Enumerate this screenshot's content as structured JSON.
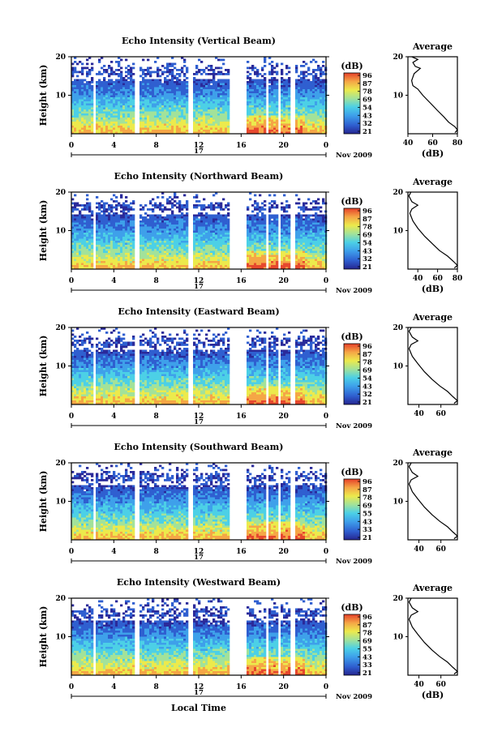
{
  "chart_data": [
    {
      "type": "heatmap",
      "title": "Echo Intensity (Vertical Beam)",
      "ylabel": "Height (km)",
      "yticks": [
        "20",
        "10"
      ],
      "ylim": [
        0,
        20
      ],
      "xticks": [
        "0",
        "4",
        "8",
        "12",
        "16",
        "20",
        "0"
      ],
      "xlim": [
        0,
        24
      ],
      "date_day": "17",
      "date_label": "Nov 2009",
      "data_gaps_hours": [
        [
          1.9,
          2.2
        ],
        [
          5.9,
          6.2
        ],
        [
          11.0,
          11.3
        ],
        [
          14.9,
          16.4
        ],
        [
          18.2,
          18.35
        ],
        [
          19.3,
          19.55
        ],
        [
          20.6,
          20.9
        ]
      ],
      "colorbar": {
        "unit": "(dB)",
        "ticks": [
          "96",
          "87",
          "78",
          "69",
          "54",
          "43",
          "32",
          "21"
        ]
      },
      "profile": {
        "title": "Average",
        "xlabel": "(dB)",
        "xticks": [
          "40",
          "60",
          "80"
        ],
        "xlim": [
          40,
          80
        ],
        "yticks": [
          "20",
          "10"
        ],
        "points": [
          [
            43,
            20
          ],
          [
            48,
            19.3
          ],
          [
            44,
            18.5
          ],
          [
            46,
            17.5
          ],
          [
            50,
            17.0
          ],
          [
            45,
            15.6
          ],
          [
            43,
            13.8
          ],
          [
            44,
            12.5
          ],
          [
            48,
            11.6
          ],
          [
            52,
            10.0
          ],
          [
            58,
            8.0
          ],
          [
            64,
            6.0
          ],
          [
            69,
            4.4
          ],
          [
            73,
            3.0
          ],
          [
            78,
            1.8
          ],
          [
            80,
            1.0
          ],
          [
            78,
            0.3
          ]
        ]
      }
    },
    {
      "type": "heatmap",
      "title": "Echo Intensity (Northward Beam)",
      "ylabel": "Height (km)",
      "yticks": [
        "20",
        "10"
      ],
      "ylim": [
        0,
        20
      ],
      "xticks": [
        "0",
        "4",
        "8",
        "12",
        "16",
        "20",
        "0"
      ],
      "xlim": [
        0,
        24
      ],
      "date_day": "17",
      "date_label": "Nov 2009",
      "data_gaps_hours": [
        [
          1.9,
          2.2
        ],
        [
          5.9,
          6.2
        ],
        [
          11.0,
          11.3
        ],
        [
          14.9,
          16.4
        ],
        [
          18.2,
          18.35
        ],
        [
          19.3,
          19.55
        ],
        [
          20.6,
          20.9
        ]
      ],
      "colorbar": {
        "unit": "(dB)",
        "ticks": [
          "96",
          "87",
          "78",
          "69",
          "54",
          "43",
          "32",
          "21"
        ]
      },
      "profile": {
        "title": "Average",
        "xlabel": "(dB)",
        "xticks": [
          "40",
          "60",
          "80"
        ],
        "xlim": [
          30,
          80
        ],
        "yticks": [
          "20",
          "10"
        ],
        "points": [
          [
            33,
            20
          ],
          [
            31,
            19.0
          ],
          [
            34,
            17.5
          ],
          [
            40,
            16.6
          ],
          [
            34,
            15.6
          ],
          [
            32,
            14.5
          ],
          [
            35,
            12.5
          ],
          [
            40,
            10.6
          ],
          [
            47,
            8.5
          ],
          [
            55,
            6.5
          ],
          [
            62,
            4.8
          ],
          [
            70,
            3.4
          ],
          [
            76,
            2.0
          ],
          [
            80,
            1.0
          ],
          [
            77,
            0.3
          ]
        ]
      }
    },
    {
      "type": "heatmap",
      "title": "Echo Intensity (Eastward Beam)",
      "ylabel": "Height (km)",
      "yticks": [
        "20",
        "10"
      ],
      "ylim": [
        0,
        20
      ],
      "xticks": [
        "0",
        "4",
        "8",
        "12",
        "16",
        "20",
        "0"
      ],
      "xlim": [
        0,
        24
      ],
      "date_day": "17",
      "date_label": "Nov 2009",
      "data_gaps_hours": [
        [
          1.9,
          2.2
        ],
        [
          5.9,
          6.2
        ],
        [
          11.0,
          11.3
        ],
        [
          14.9,
          16.4
        ],
        [
          18.2,
          18.35
        ],
        [
          19.3,
          19.55
        ],
        [
          20.6,
          20.9
        ]
      ],
      "colorbar": {
        "unit": "(dB)",
        "ticks": [
          "96",
          "87",
          "78",
          "69",
          "54",
          "43",
          "32",
          "21"
        ]
      },
      "profile": {
        "title": "Average",
        "xlabel": "",
        "xticks": [
          "40",
          "60"
        ],
        "xlim": [
          30,
          75
        ],
        "yticks": [
          "20",
          "10"
        ],
        "points": [
          [
            33,
            20
          ],
          [
            31,
            19.0
          ],
          [
            34,
            17.5
          ],
          [
            39,
            16.5
          ],
          [
            33,
            15.6
          ],
          [
            31,
            14.5
          ],
          [
            34,
            12.5
          ],
          [
            39,
            10.6
          ],
          [
            45,
            8.5
          ],
          [
            52,
            6.5
          ],
          [
            59,
            4.8
          ],
          [
            66,
            3.4
          ],
          [
            71,
            2.0
          ],
          [
            75,
            1.0
          ],
          [
            72,
            0.3
          ]
        ]
      }
    },
    {
      "type": "heatmap",
      "title": "Echo Intensity (Southward Beam)",
      "ylabel": "Height (km)",
      "yticks": [
        "20",
        "10"
      ],
      "ylim": [
        0,
        20
      ],
      "xticks": [
        "0",
        "4",
        "8",
        "12",
        "16",
        "20",
        "0"
      ],
      "xlim": [
        0,
        24
      ],
      "date_day": "17",
      "date_label": "Nov 2009",
      "data_gaps_hours": [
        [
          1.9,
          2.2
        ],
        [
          5.9,
          6.2
        ],
        [
          11.0,
          11.3
        ],
        [
          14.9,
          16.4
        ],
        [
          18.2,
          18.35
        ],
        [
          19.3,
          19.55
        ],
        [
          20.6,
          20.9
        ]
      ],
      "colorbar": {
        "unit": "(dB)",
        "ticks": [
          "96",
          "87",
          "78",
          "69",
          "55",
          "43",
          "33",
          "21"
        ]
      },
      "profile": {
        "title": "Average",
        "xlabel": "",
        "xticks": [
          "40",
          "60"
        ],
        "xlim": [
          30,
          75
        ],
        "yticks": [
          "20",
          "10"
        ],
        "points": [
          [
            33,
            20
          ],
          [
            31,
            19.0
          ],
          [
            34,
            17.5
          ],
          [
            39,
            16.5
          ],
          [
            33,
            15.6
          ],
          [
            31,
            14.5
          ],
          [
            34,
            12.5
          ],
          [
            39,
            10.6
          ],
          [
            45,
            8.5
          ],
          [
            52,
            6.5
          ],
          [
            59,
            4.8
          ],
          [
            66,
            3.4
          ],
          [
            71,
            2.0
          ],
          [
            75,
            1.0
          ],
          [
            72,
            0.3
          ]
        ]
      }
    },
    {
      "type": "heatmap",
      "title": "Echo Intensity (Westward Beam)",
      "ylabel": "Height (km)",
      "yticks": [
        "20",
        "10"
      ],
      "ylim": [
        0,
        20
      ],
      "xticks": [
        "0",
        "4",
        "8",
        "12",
        "16",
        "20",
        "0"
      ],
      "xlim": [
        0,
        24
      ],
      "date_day": "17",
      "date_label": "Nov 2009",
      "data_gaps_hours": [
        [
          1.9,
          2.2
        ],
        [
          5.9,
          6.2
        ],
        [
          11.0,
          11.3
        ],
        [
          14.9,
          16.4
        ],
        [
          18.2,
          18.35
        ],
        [
          19.3,
          19.55
        ],
        [
          20.6,
          20.9
        ]
      ],
      "colorbar": {
        "unit": "(dB)",
        "ticks": [
          "96",
          "87",
          "78",
          "69",
          "55",
          "43",
          "33",
          "21"
        ]
      },
      "profile": {
        "title": "Average",
        "xlabel": "(dB)",
        "xticks": [
          "40",
          "60"
        ],
        "xlim": [
          30,
          75
        ],
        "yticks": [
          "20",
          "10"
        ],
        "points": [
          [
            33,
            20
          ],
          [
            31,
            19.0
          ],
          [
            34,
            17.5
          ],
          [
            39,
            16.5
          ],
          [
            33,
            15.6
          ],
          [
            31,
            14.5
          ],
          [
            34,
            12.5
          ],
          [
            39,
            10.6
          ],
          [
            45,
            8.5
          ],
          [
            52,
            6.5
          ],
          [
            59,
            4.8
          ],
          [
            66,
            3.4
          ],
          [
            71,
            2.0
          ],
          [
            75,
            1.0
          ],
          [
            72,
            0.3
          ]
        ]
      }
    }
  ],
  "xlabel": "Local Time",
  "colors": {
    "colormap": [
      "#2a2a9a",
      "#2f5fd0",
      "#3ea0ea",
      "#4cd0e6",
      "#a2e29a",
      "#ecea4c",
      "#f5a646",
      "#e6482e"
    ]
  }
}
